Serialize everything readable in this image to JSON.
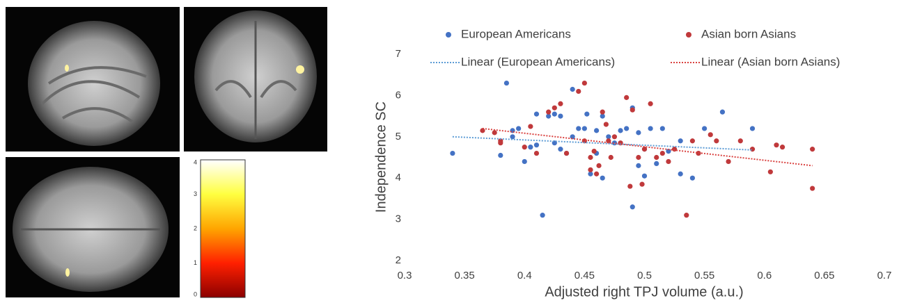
{
  "chart_data": [
    {
      "type": "scatter",
      "xlabel": "Adjusted right TPJ volume (a.u.)",
      "ylabel": "Independence SC",
      "xlim": [
        0.3,
        0.7
      ],
      "xticks": [
        0.3,
        0.35,
        0.4,
        0.45,
        0.5,
        0.55,
        0.6,
        0.65,
        0.7
      ],
      "ylim": [
        2,
        7
      ],
      "yticks": [
        2,
        3,
        4,
        5,
        6,
        7
      ],
      "grid": false,
      "legend": "top",
      "series": [
        {
          "name": "European Americans",
          "type": "scatter",
          "color": "#4472c4",
          "x": [
            0.34,
            0.385,
            0.38,
            0.39,
            0.39,
            0.395,
            0.4,
            0.405,
            0.41,
            0.41,
            0.415,
            0.42,
            0.425,
            0.425,
            0.43,
            0.43,
            0.435,
            0.44,
            0.44,
            0.445,
            0.45,
            0.452,
            0.455,
            0.46,
            0.46,
            0.465,
            0.465,
            0.47,
            0.475,
            0.48,
            0.485,
            0.49,
            0.49,
            0.495,
            0.495,
            0.5,
            0.5,
            0.505,
            0.51,
            0.515,
            0.52,
            0.53,
            0.53,
            0.54,
            0.55,
            0.565,
            0.59
          ],
          "values": [
            4.6,
            6.3,
            4.55,
            5.0,
            5.15,
            5.2,
            4.4,
            4.75,
            5.55,
            4.8,
            3.1,
            5.5,
            4.85,
            5.55,
            5.5,
            4.7,
            4.6,
            6.15,
            5.0,
            5.2,
            5.2,
            5.55,
            4.1,
            4.6,
            5.15,
            4.0,
            5.5,
            5.0,
            4.85,
            5.15,
            5.2,
            3.3,
            5.7,
            4.3,
            5.1,
            4.05,
            4.7,
            5.2,
            4.35,
            5.2,
            4.65,
            4.9,
            4.1,
            4.0,
            5.2,
            5.6,
            5.2
          ]
        },
        {
          "name": "Asian born Asians",
          "type": "scatter",
          "color": "#c0393b",
          "x": [
            0.365,
            0.375,
            0.38,
            0.38,
            0.4,
            0.405,
            0.41,
            0.42,
            0.425,
            0.43,
            0.435,
            0.445,
            0.45,
            0.45,
            0.455,
            0.455,
            0.458,
            0.46,
            0.462,
            0.465,
            0.468,
            0.47,
            0.472,
            0.475,
            0.48,
            0.485,
            0.488,
            0.49,
            0.495,
            0.498,
            0.5,
            0.505,
            0.51,
            0.515,
            0.52,
            0.525,
            0.535,
            0.54,
            0.545,
            0.555,
            0.56,
            0.57,
            0.58,
            0.59,
            0.605,
            0.61,
            0.615,
            0.64,
            0.64
          ],
          "values": [
            5.15,
            5.1,
            4.85,
            4.9,
            4.75,
            5.25,
            4.6,
            5.6,
            5.7,
            5.8,
            4.6,
            6.1,
            6.3,
            4.9,
            4.5,
            4.2,
            4.65,
            4.1,
            4.3,
            5.6,
            5.3,
            4.9,
            4.5,
            5.0,
            4.85,
            5.95,
            3.8,
            5.65,
            4.5,
            3.85,
            4.7,
            5.8,
            4.5,
            4.6,
            4.4,
            4.7,
            3.1,
            4.9,
            4.6,
            5.05,
            4.9,
            4.4,
            4.9,
            4.7,
            4.15,
            4.8,
            4.75,
            3.75,
            4.7
          ]
        },
        {
          "name": "Linear (European Americans)",
          "type": "line",
          "style": "dotted",
          "color": "#5b9bd5",
          "x": [
            0.34,
            0.59
          ],
          "values": [
            5.0,
            4.68
          ]
        },
        {
          "name": "Linear (Asian born Asians)",
          "type": "line",
          "style": "dotted",
          "color": "#d9413f",
          "x": [
            0.365,
            0.64
          ],
          "values": [
            5.2,
            4.3
          ]
        }
      ]
    },
    {
      "type": "colorbar",
      "ylim": [
        0,
        4
      ],
      "yticks": [
        0,
        1,
        2,
        3,
        4
      ],
      "colors": [
        "#8b0000",
        "#ff2000",
        "#ffa500",
        "#ffff40",
        "#ffffff"
      ]
    }
  ]
}
